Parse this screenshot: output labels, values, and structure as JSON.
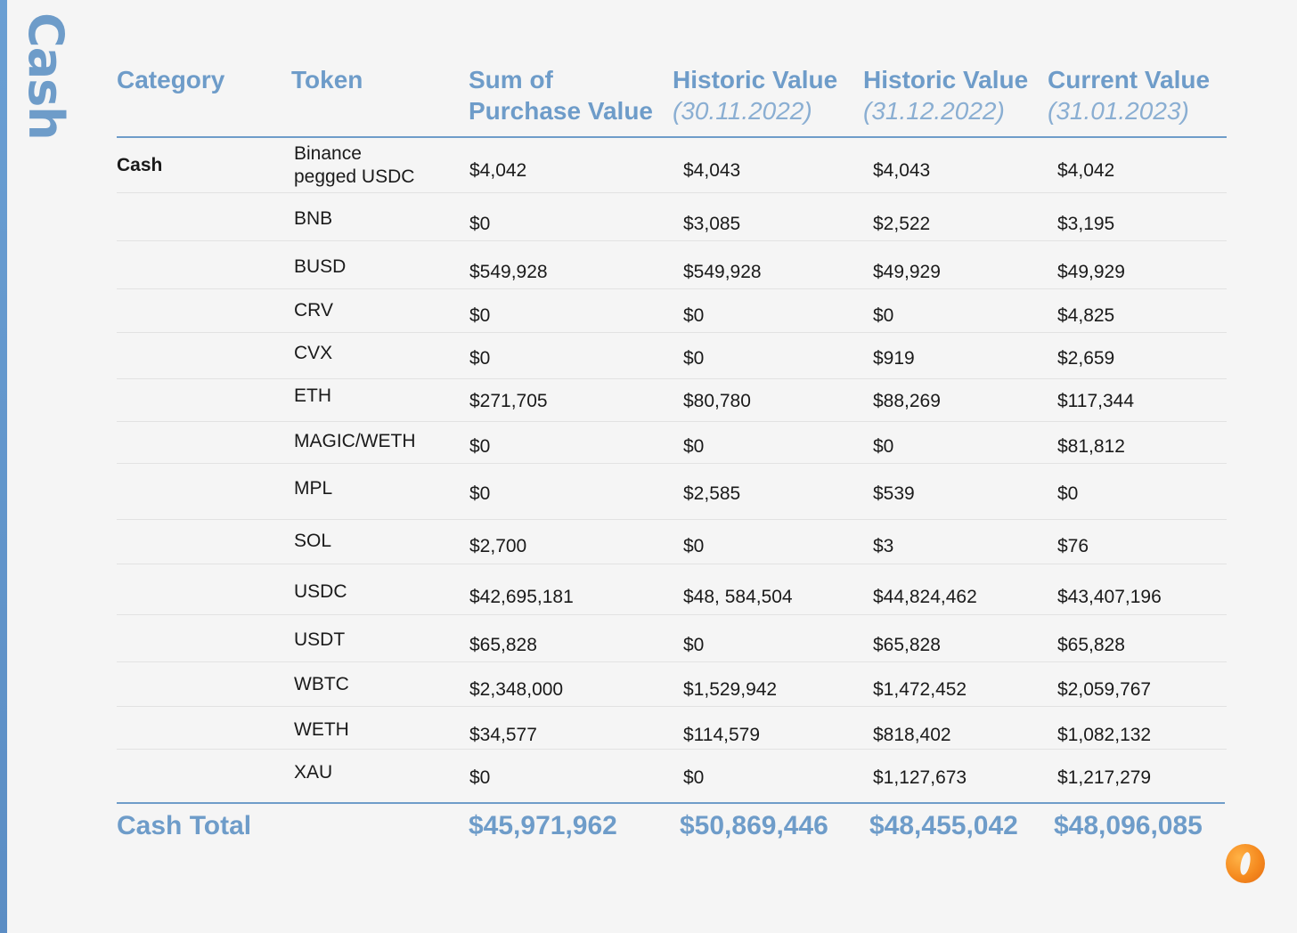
{
  "side_title": "Cash",
  "headers": [
    {
      "main": "Category",
      "sub": ""
    },
    {
      "main": "Token",
      "sub": ""
    },
    {
      "main": "Sum of",
      "sub": "Purchase Value"
    },
    {
      "main": "Historic Value",
      "sub": "(30.11.2022)"
    },
    {
      "main": "Historic Value",
      "sub": "(31.12.2022)"
    },
    {
      "main": "Current Value",
      "sub": "(31.01.2023)"
    }
  ],
  "rows": [
    {
      "category": "Cash",
      "token_line1": "Binance",
      "token_line2": "pegged USDC",
      "values": [
        "$4,042",
        "$4,043",
        "$4,043",
        "$4,042"
      ]
    },
    {
      "category": "",
      "token_line1": "BNB",
      "token_line2": "",
      "values": [
        "$0",
        "$3,085",
        "$2,522",
        "$3,195"
      ]
    },
    {
      "category": "",
      "token_line1": "BUSD",
      "token_line2": "",
      "values": [
        "$549,928",
        "$549,928",
        "$49,929",
        "$49,929"
      ]
    },
    {
      "category": "",
      "token_line1": "CRV",
      "token_line2": "",
      "values": [
        "$0",
        "$0",
        "$0",
        "$4,825"
      ]
    },
    {
      "category": "",
      "token_line1": "CVX",
      "token_line2": "",
      "values": [
        "$0",
        "$0",
        "$919",
        "$2,659"
      ]
    },
    {
      "category": "",
      "token_line1": "ETH",
      "token_line2": "",
      "values": [
        "$271,705",
        "$80,780",
        "$88,269",
        "$117,344"
      ]
    },
    {
      "category": "",
      "token_line1": "MAGIC/WETH",
      "token_line2": "",
      "values": [
        "$0",
        "$0",
        "$0",
        "$81,812"
      ]
    },
    {
      "category": "",
      "token_line1": "MPL",
      "token_line2": "",
      "values": [
        "$0",
        "$2,585",
        "$539",
        "$0"
      ]
    },
    {
      "category": "",
      "token_line1": "SOL",
      "token_line2": "",
      "values": [
        "$2,700",
        "$0",
        "$3",
        "$76"
      ]
    },
    {
      "category": "",
      "token_line1": "USDC",
      "token_line2": "",
      "values": [
        "$42,695,181",
        "$48, 584,504",
        "$44,824,462",
        "$43,407,196"
      ]
    },
    {
      "category": "",
      "token_line1": "USDT",
      "token_line2": "",
      "values": [
        "$65,828",
        "$0",
        "$65,828",
        "$65,828"
      ]
    },
    {
      "category": "",
      "token_line1": "WBTC",
      "token_line2": "",
      "values": [
        "$2,348,000",
        "$1,529,942",
        "$1,472,452",
        "$2,059,767"
      ]
    },
    {
      "category": "",
      "token_line1": "WETH",
      "token_line2": "",
      "values": [
        "$34,577",
        "$114,579",
        "$818,402",
        "$1,082,132"
      ]
    },
    {
      "category": "",
      "token_line1": "XAU",
      "token_line2": "",
      "values": [
        "$0",
        "$0",
        "$1,127,673",
        "$1,217,279"
      ]
    }
  ],
  "total": {
    "label": "Cash Total",
    "values": [
      "$45,971,962",
      "$50,869,446",
      "$48,455,042",
      "$48,096,085"
    ]
  },
  "colors": {
    "accent": "#6e9cc9",
    "background": "#f5f5f5",
    "logo": "#f58a1f"
  },
  "logo_icon": "orange-circle-logo-icon"
}
